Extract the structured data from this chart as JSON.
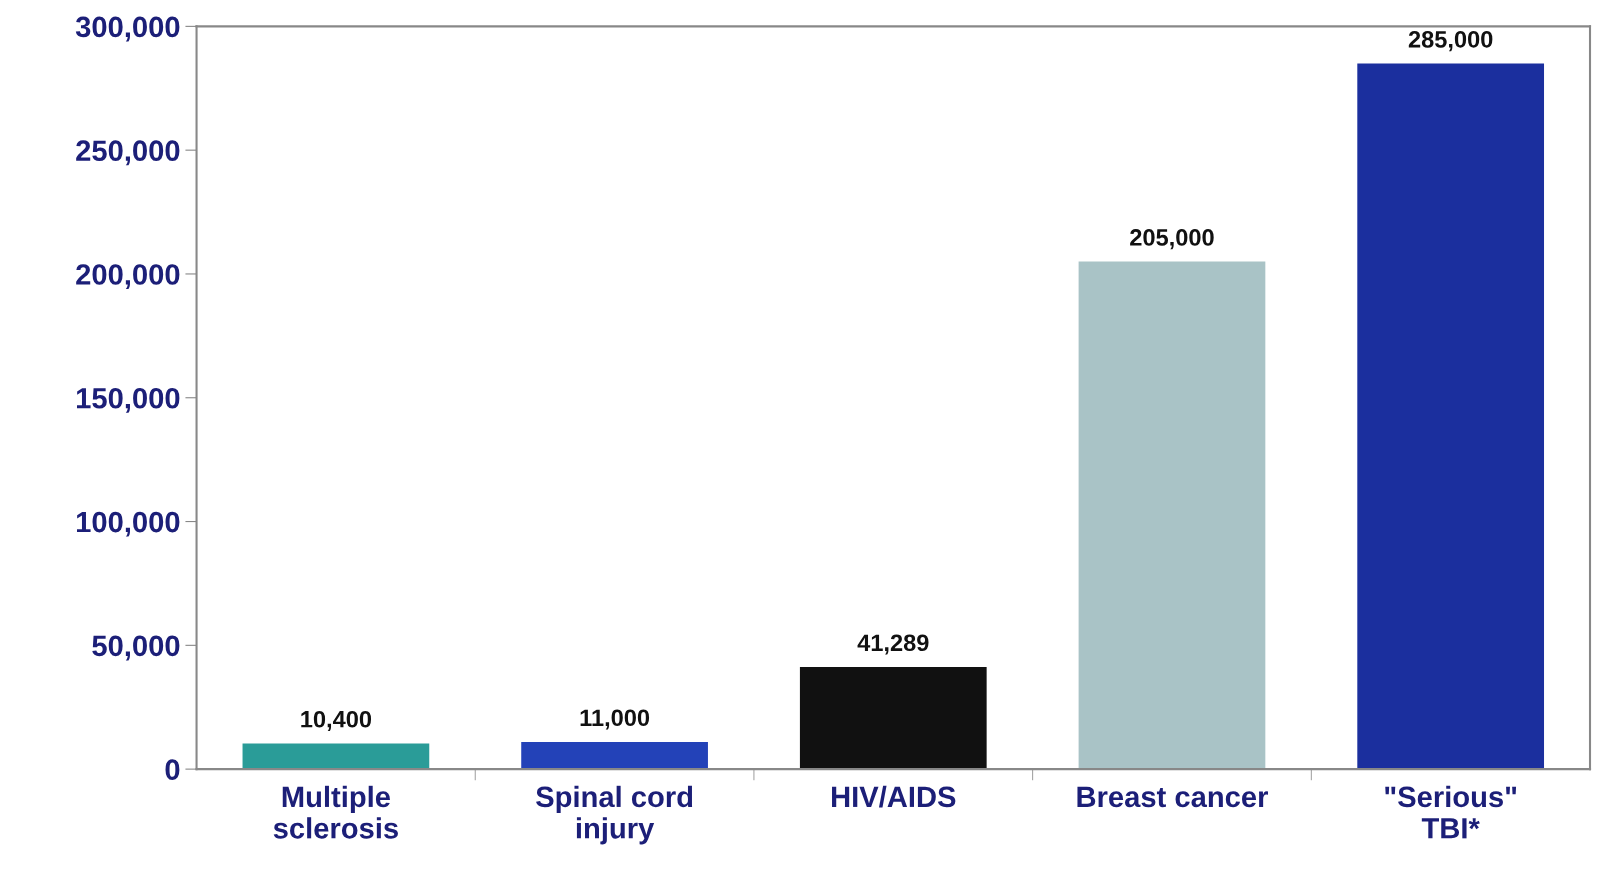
{
  "chart_data": {
    "type": "bar",
    "categories": [
      "Multiple\nsclerosis",
      "Spinal cord\ninjury",
      "HIV/AIDS",
      "Breast cancer",
      "\"Serious\"\nTBI*"
    ],
    "values": [
      10400,
      11000,
      41289,
      205000,
      285000
    ],
    "colors": [
      "#2a9c98",
      "#2342b8",
      "#111111",
      "#a9c3c6",
      "#1b2f9e"
    ],
    "ylim": [
      0,
      300000
    ],
    "yticks": [
      {
        "value": 0,
        "label": "0"
      },
      {
        "value": 50000,
        "label": "50,000"
      },
      {
        "value": 100000,
        "label": "100,000"
      },
      {
        "value": 150000,
        "label": "150,000"
      },
      {
        "value": 200000,
        "label": "200,000"
      },
      {
        "value": 250000,
        "label": "250,000"
      },
      {
        "value": 300000,
        "label": "300,000"
      }
    ],
    "value_labels": [
      "10,400",
      "11,000",
      "41,289",
      "205,000",
      "285,000"
    ],
    "grid": false,
    "legend": false
  }
}
